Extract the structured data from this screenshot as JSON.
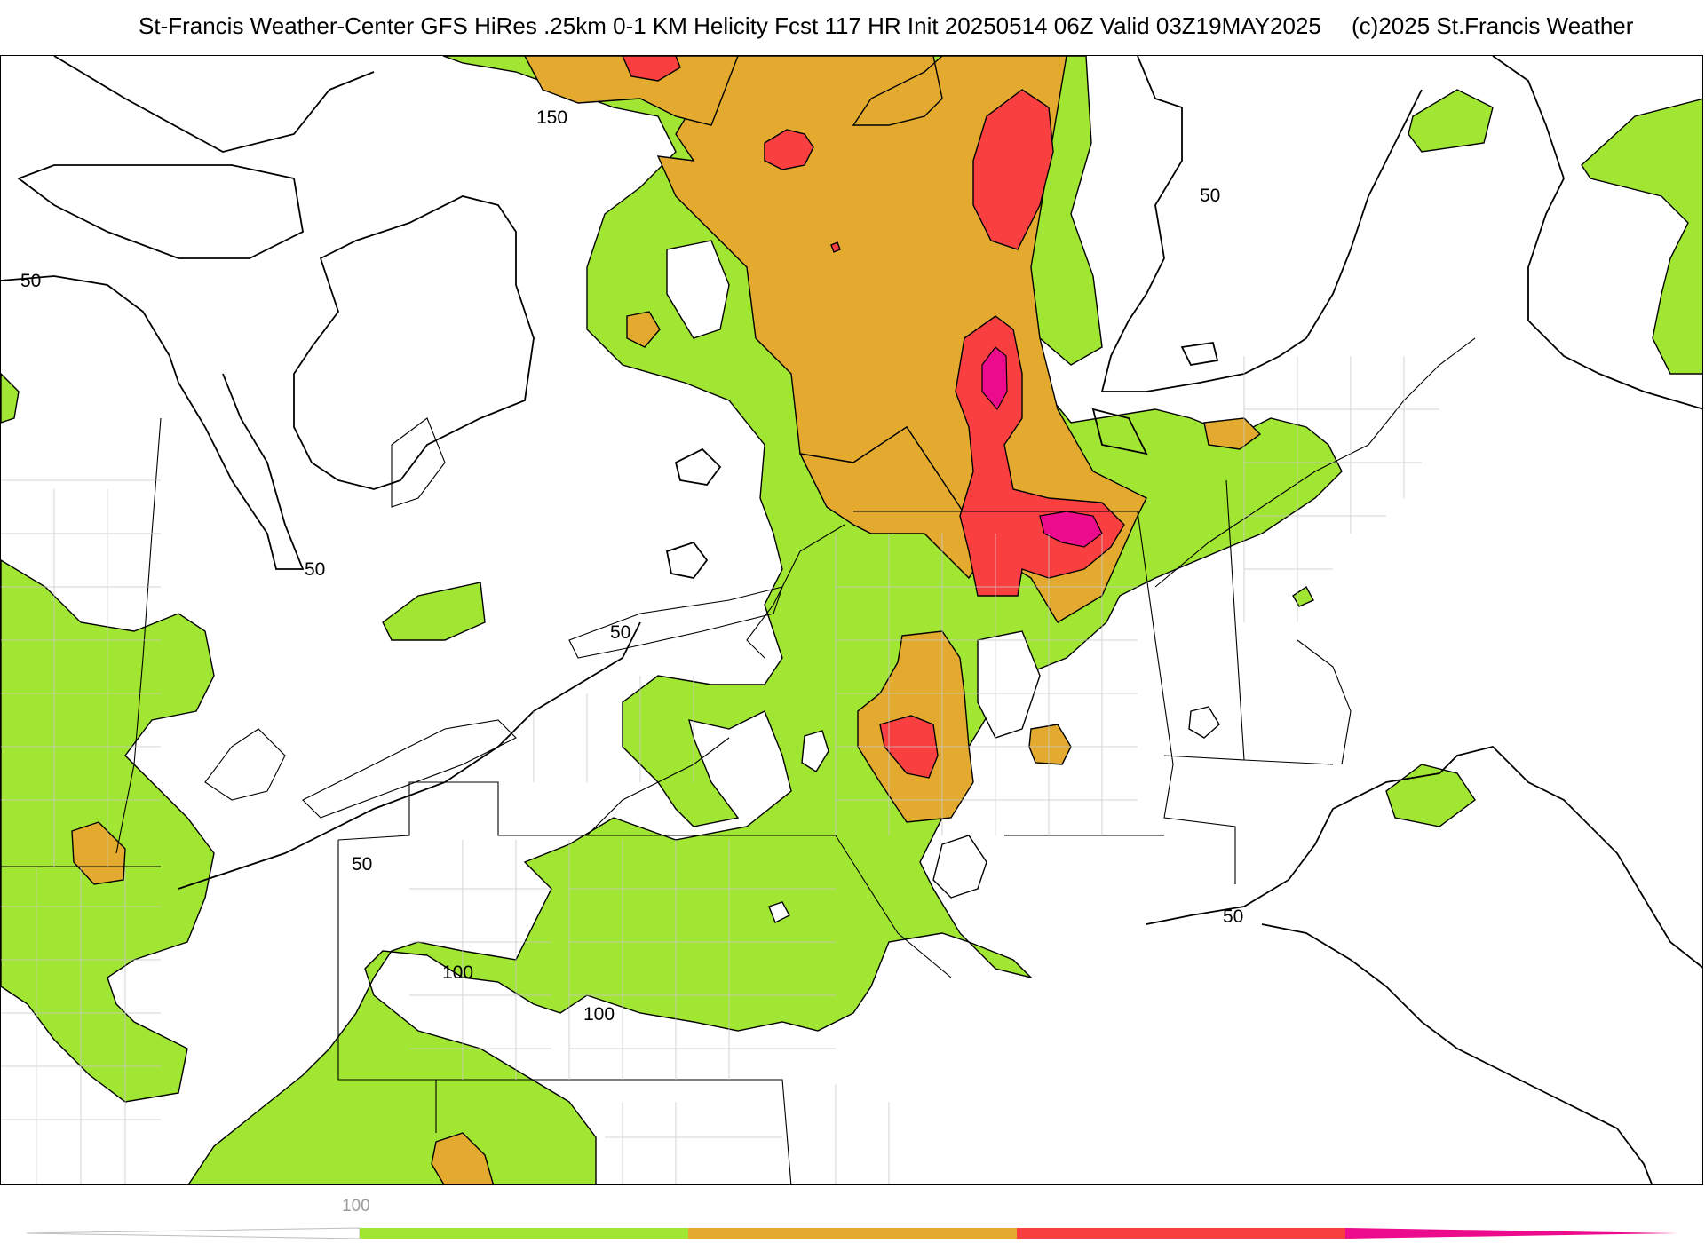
{
  "header": {
    "title": "St-Francis Weather-Center GFS HiRes .25km 0-1 KM Helicity Fcst 117 HR Init 20250514 06Z  Valid 03Z19MAY2025",
    "copyright": "(c)2025 St.Francis Weather"
  },
  "colors": {
    "lvl100": "#a2e634",
    "lvl150": "#e3aa2f",
    "lvl200": "#fa3f40",
    "lvl250": "#ec0b8c",
    "contour": "#000000",
    "county": "#c8c8c8"
  },
  "contour_labels": [
    {
      "text": "150"
    },
    {
      "text": "50"
    },
    {
      "text": "50"
    },
    {
      "text": "50"
    },
    {
      "text": "50"
    },
    {
      "text": "50"
    },
    {
      "text": "100"
    },
    {
      "text": "100"
    },
    {
      "text": "50"
    }
  ],
  "colorbar": {
    "tick_label": "100",
    "segments": [
      {
        "level": 100,
        "color": "#a2e634"
      },
      {
        "level": 150,
        "color": "#e3aa2f"
      },
      {
        "level": 200,
        "color": "#fa3f40"
      },
      {
        "level": 250,
        "color": "#ec0b8c"
      }
    ]
  }
}
